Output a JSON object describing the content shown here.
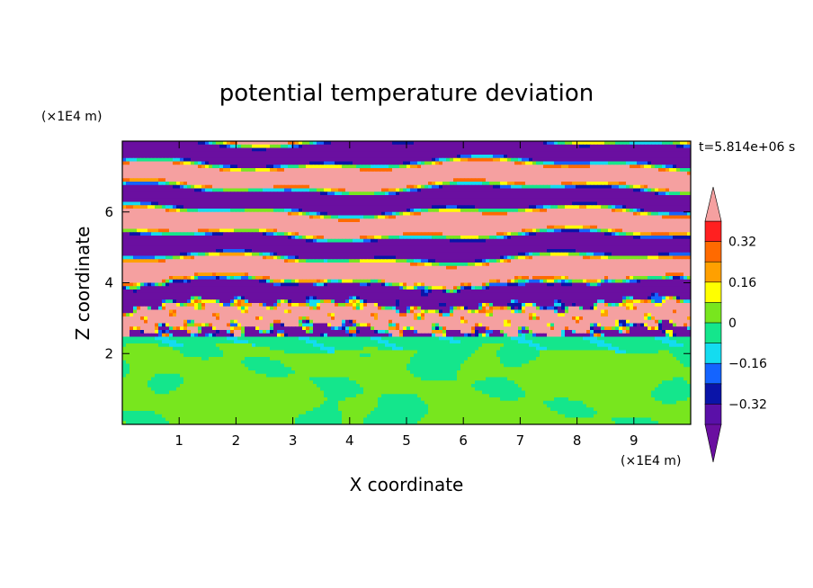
{
  "chart_data": {
    "type": "heatmap",
    "title": "potential temperature deviation",
    "xlabel": "X coordinate",
    "ylabel": "Z coordinate",
    "x_unit": "(×1E4 m)",
    "y_unit": "(×1E4 m)",
    "time_label": "t=5.814e+06 s",
    "xlim": [
      0,
      10
    ],
    "ylim": [
      0,
      8
    ],
    "x_ticks": [
      1,
      2,
      3,
      4,
      5,
      6,
      7,
      8,
      9
    ],
    "y_ticks": [
      2,
      4,
      6
    ],
    "colorbar": {
      "levels": [
        -0.48,
        -0.4,
        -0.32,
        -0.24,
        -0.16,
        -0.08,
        0,
        0.08,
        0.16,
        0.24,
        0.32,
        0.4,
        0.48
      ],
      "tick_labels": [
        "0.32",
        "0.16",
        "0",
        "−0.16",
        "−0.32"
      ],
      "tick_values": [
        0.32,
        0.16,
        0,
        -0.16,
        -0.32
      ],
      "colors": [
        "#6a0fa0",
        "#5a10a8",
        "#0a14a8",
        "#1464ff",
        "#14dcf0",
        "#14e68c",
        "#78e61e",
        "#ffff00",
        "#ffa000",
        "#ff6a00",
        "#ff2020",
        "#f5a0a0"
      ],
      "extend": "both"
    },
    "regions": [
      {
        "z_range": [
          0,
          2.1
        ],
        "description_values": [
          0,
          0.08
        ]
      },
      {
        "z_range": [
          2.1,
          2.45
        ],
        "description_values": [
          -0.08,
          0
        ]
      },
      {
        "z_range": [
          2.45,
          4.2
        ],
        "description_values": [
          -0.48,
          0.48
        ]
      },
      {
        "z_range": [
          4.2,
          8
        ],
        "description_values": [
          -0.48,
          0.48
        ]
      }
    ]
  }
}
